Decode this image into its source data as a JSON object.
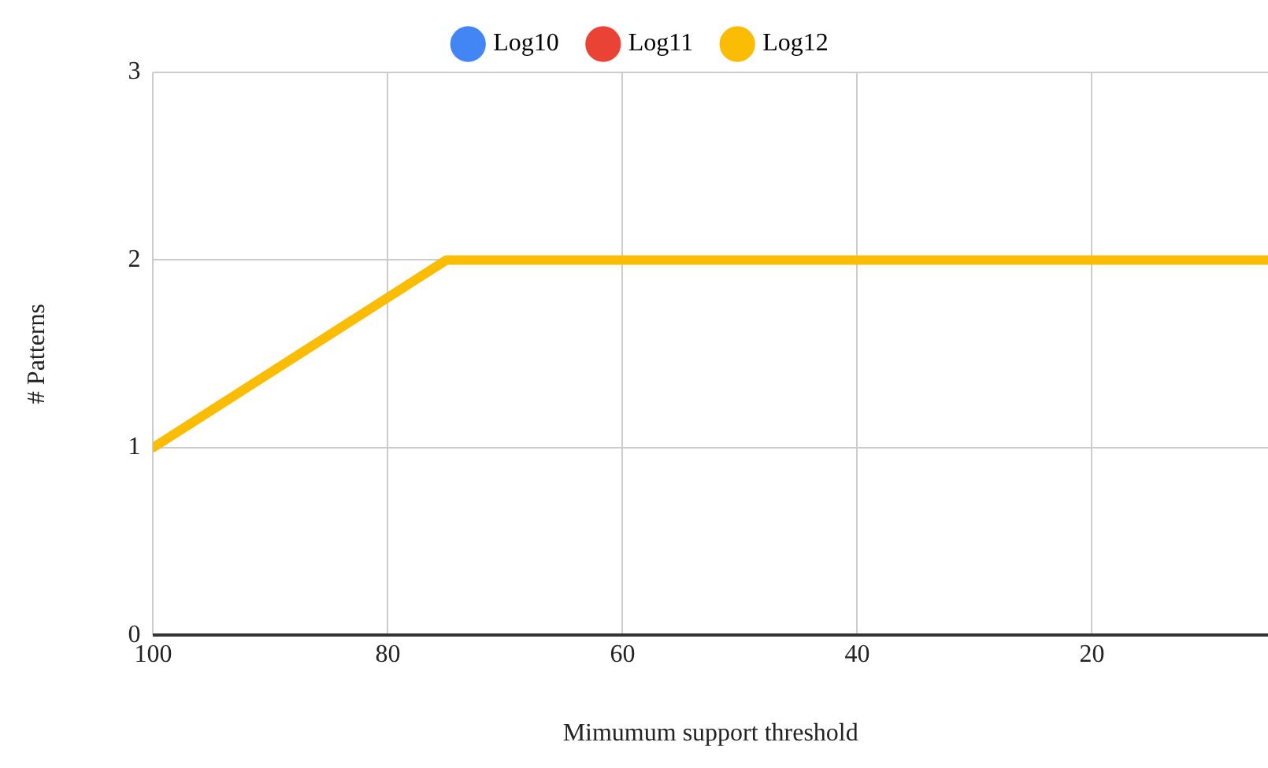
{
  "chart_data": {
    "type": "line",
    "xlabel": "Mimumum support threshold",
    "ylabel": "# Patterns",
    "x": [
      100,
      75,
      50,
      25,
      10,
      5
    ],
    "series": [
      {
        "name": "Log10",
        "color": "#4285f4",
        "values": [
          null,
          null,
          null,
          null,
          null,
          null
        ]
      },
      {
        "name": "Log11",
        "color": "#ea4335",
        "values": [
          null,
          null,
          null,
          null,
          null,
          null
        ]
      },
      {
        "name": "Log12",
        "color": "#fbbc04",
        "values": [
          1,
          2,
          2,
          2,
          2,
          2
        ]
      }
    ],
    "xlim": [
      100,
      5
    ],
    "xticks": [
      100,
      80,
      60,
      40,
      20
    ],
    "ylim": [
      0,
      3
    ],
    "yticks": [
      0,
      1,
      2,
      3
    ],
    "grid": true,
    "legend": "top",
    "marker": "none",
    "line_style": "solid"
  }
}
